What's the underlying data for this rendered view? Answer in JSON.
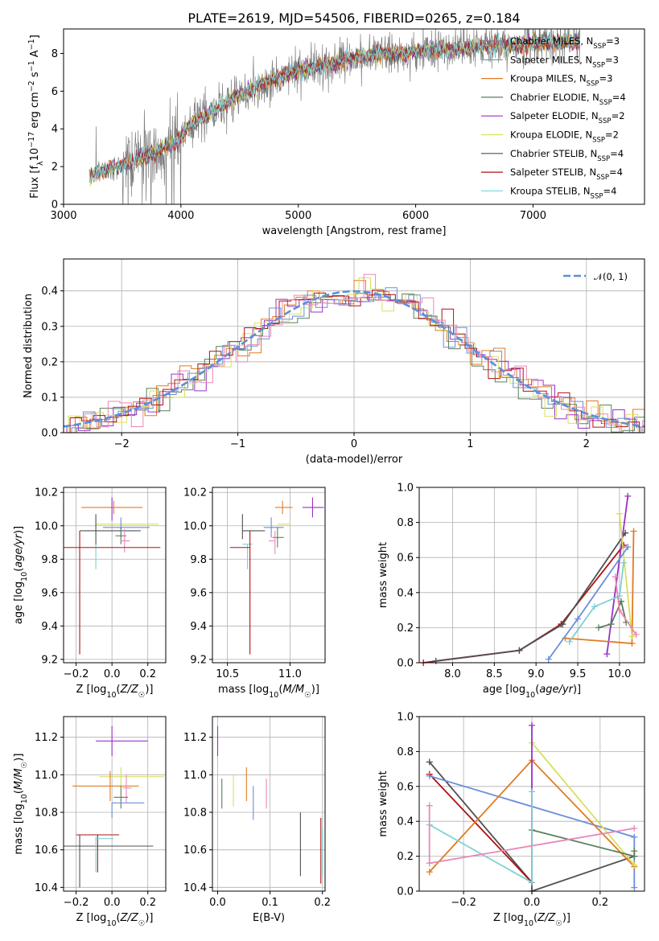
{
  "title": "PLATE=2619, MJD=54506, FIBERID=0265, z=0.184",
  "colors": {
    "chabrier_miles": "#808080",
    "salpeter_miles": "#5f9ea0",
    "kroupa_miles": "#e07b20",
    "chabrier_elodie": "#5a7f5a",
    "salpeter_elodie": "#9b30c8",
    "kroupa_elodie": "#d8e060",
    "chabrier_stelib": "#505050",
    "salpeter_stelib": "#b01010",
    "kroupa_stelib": "#80d8e0",
    "blue": "#6a8ed8",
    "pink": "#e888b8",
    "teal": "#80d0d0",
    "data_gray": "#808080",
    "normal_curve": "#5a8fd8",
    "grid": "#b0b0b0"
  },
  "chart_data": [
    {
      "id": "spectrum",
      "type": "line",
      "xlabel": "wavelength [Angstrom, rest frame]",
      "ylabel": "Flux [fλ10⁻¹⁷ erg cm⁻² s⁻¹ A⁻¹]",
      "xlim": [
        3000,
        7950
      ],
      "ylim": [
        0,
        9.3
      ],
      "xticks": [
        3000,
        4000,
        5000,
        6000,
        7000
      ],
      "yticks": [
        0,
        2,
        4,
        6,
        8
      ],
      "grid": false,
      "legend_position": "top-right",
      "legend": [
        {
          "name": "Chabrier MILES, N",
          "sub": "SSP",
          "suffix": "=3",
          "color": "chabrier_miles"
        },
        {
          "name": "Salpeter MILES, N",
          "sub": "SSP",
          "suffix": "=3",
          "color": "salpeter_miles"
        },
        {
          "name": "Kroupa MILES, N",
          "sub": "SSP",
          "suffix": "=3",
          "color": "kroupa_miles"
        },
        {
          "name": "Chabrier ELODIE, N",
          "sub": "SSP",
          "suffix": "=4",
          "color": "chabrier_elodie"
        },
        {
          "name": "Salpeter ELODIE, N",
          "sub": "SSP",
          "suffix": "=2",
          "color": "salpeter_elodie"
        },
        {
          "name": "Kroupa ELODIE, N",
          "sub": "SSP",
          "suffix": "=2",
          "color": "kroupa_elodie"
        },
        {
          "name": "Chabrier STELIB, N",
          "sub": "SSP",
          "suffix": "=4",
          "color": "chabrier_stelib"
        },
        {
          "name": "Salpeter STELIB, N",
          "sub": "SSP",
          "suffix": "=4",
          "color": "salpeter_stelib"
        },
        {
          "name": "Kroupa STELIB, N",
          "sub": "SSP",
          "suffix": "=4",
          "color": "kroupa_stelib"
        }
      ],
      "continuum_x": [
        3220,
        3400,
        3600,
        3800,
        3950,
        4100,
        4300,
        4500,
        4700,
        4900,
        5100,
        5300,
        5500,
        5700,
        5900,
        6100,
        6300,
        6500,
        6700,
        6900,
        7100,
        7300,
        7400
      ],
      "continuum_y": [
        1.5,
        1.9,
        2.3,
        2.8,
        3.3,
        4.3,
        5.0,
        5.8,
        6.4,
        6.9,
        7.2,
        7.5,
        7.8,
        8.0,
        8.0,
        8.2,
        8.2,
        8.3,
        8.4,
        8.5,
        8.6,
        8.6,
        8.6
      ]
    },
    {
      "id": "residuals",
      "type": "histogram",
      "xlabel": "(data-model)/error",
      "ylabel": "Normed distribution",
      "xlim": [
        -2.5,
        2.5
      ],
      "ylim": [
        0,
        0.49
      ],
      "xticks": [
        -2,
        -1,
        0,
        1,
        2
      ],
      "yticks": [
        0.0,
        0.1,
        0.2,
        0.3,
        0.4
      ],
      "grid": true,
      "legend_position": "top-right",
      "legend": [
        {
          "name": "𝒩(0, 1)",
          "color": "normal_curve",
          "dashed": true
        }
      ],
      "bin_width": 0.1
    },
    {
      "id": "age_vs_Z",
      "type": "errorbar",
      "xlabel": "Z [log10(Z/Z☉)]",
      "ylabel": "age  [log10(age/yr)]",
      "xlim": [
        -0.27,
        0.3
      ],
      "ylim": [
        9.18,
        10.23
      ],
      "xticks": [
        -0.2,
        0.0,
        0.2
      ],
      "yticks": [
        9.2,
        9.4,
        9.6,
        9.8,
        10.0,
        10.2
      ],
      "grid": true,
      "points": [
        {
          "x": 0.01,
          "y": 10.11,
          "xerr": [
            0.18,
            0.16
          ],
          "yerr": [
            0.04,
            0.04
          ],
          "color": "kroupa_miles"
        },
        {
          "x": 0.0,
          "y": 10.11,
          "xerr": [
            0.0,
            0.0
          ],
          "yerr": [
            0.08,
            0.06
          ],
          "color": "salpeter_elodie"
        },
        {
          "x": 0.05,
          "y": 10.01,
          "xerr": [
            0.14,
            0.21
          ],
          "yerr": [
            0.0,
            0.0
          ],
          "color": "kroupa_elodie"
        },
        {
          "x": -0.09,
          "y": 9.97,
          "xerr": [
            0.09,
            0.25
          ],
          "yerr": [
            0.09,
            0.1
          ],
          "color": "chabrier_stelib"
        },
        {
          "x": 0.05,
          "y": 9.99,
          "xerr": [
            0.1,
            0.16
          ],
          "yerr": [
            0.06,
            0.06
          ],
          "color": "blue"
        },
        {
          "x": 0.05,
          "y": 9.94,
          "xerr": [
            0.03,
            0.03
          ],
          "yerr": [
            0.05,
            0.05
          ],
          "color": "chabrier_elodie"
        },
        {
          "x": 0.07,
          "y": 9.91,
          "xerr": [
            0.02,
            0.03
          ],
          "yerr": [
            0.07,
            0.07
          ],
          "color": "pink"
        },
        {
          "x": -0.09,
          "y": 9.89,
          "xerr": [
            0.0,
            0.0
          ],
          "yerr": [
            0.15,
            0.0
          ],
          "color": "teal"
        },
        {
          "x": -0.18,
          "y": 9.87,
          "xerr": [
            0.09,
            0.45
          ],
          "yerr": [
            0.64,
            0.1
          ],
          "color": "salpeter_stelib"
        }
      ]
    },
    {
      "id": "age_vs_mass",
      "type": "errorbar",
      "xlabel": "mass [log10(M/M☉)]",
      "ylabel": "",
      "xlim": [
        10.38,
        11.28
      ],
      "ylim": [
        9.18,
        10.23
      ],
      "xticks": [
        10.5,
        11.0
      ],
      "yticks": [
        9.2,
        9.4,
        9.6,
        9.8,
        10.0,
        10.2
      ],
      "grid": true,
      "points": [
        {
          "x": 11.18,
          "y": 10.11,
          "xerr": [
            0.08,
            0.09
          ],
          "yerr": [
            0.06,
            0.06
          ],
          "color": "salpeter_elodie"
        },
        {
          "x": 10.94,
          "y": 10.11,
          "xerr": [
            0.06,
            0.08
          ],
          "yerr": [
            0.04,
            0.04
          ],
          "color": "kroupa_miles"
        },
        {
          "x": 10.98,
          "y": 10.01,
          "xerr": [
            0.08,
            0.02
          ],
          "yerr": [
            0.0,
            0.0
          ],
          "color": "kroupa_elodie"
        },
        {
          "x": 10.62,
          "y": 9.97,
          "xerr": [
            0.0,
            0.18
          ],
          "yerr": [
            0.05,
            0.1
          ],
          "color": "chabrier_stelib"
        },
        {
          "x": 10.85,
          "y": 9.99,
          "xerr": [
            0.06,
            0.1
          ],
          "yerr": [
            0.06,
            0.06
          ],
          "color": "blue"
        },
        {
          "x": 10.9,
          "y": 9.93,
          "xerr": [
            0.04,
            0.05
          ],
          "yerr": [
            0.06,
            0.06
          ],
          "color": "chabrier_elodie"
        },
        {
          "x": 10.88,
          "y": 9.91,
          "xerr": [
            0.05,
            0.0
          ],
          "yerr": [
            0.08,
            0.06
          ],
          "color": "pink"
        },
        {
          "x": 10.66,
          "y": 9.89,
          "xerr": [
            0.04,
            0.04
          ],
          "yerr": [
            0.15,
            0.0
          ],
          "color": "teal"
        },
        {
          "x": 10.68,
          "y": 9.87,
          "xerr": [
            0.16,
            0.0
          ],
          "yerr": [
            0.64,
            0.1
          ],
          "color": "salpeter_stelib"
        }
      ]
    },
    {
      "id": "weight_vs_age",
      "type": "line",
      "xlabel": "age  [log10(age/yr)]",
      "ylabel": "mass weight",
      "xlim": [
        7.6,
        10.3
      ],
      "ylim": [
        0,
        1.0
      ],
      "xticks": [
        8.0,
        8.5,
        9.0,
        9.5,
        10.0
      ],
      "yticks": [
        0.0,
        0.2,
        0.4,
        0.6,
        0.8,
        1.0
      ],
      "grid": true,
      "series": [
        {
          "color": "salpeter_stelib",
          "x": [
            7.65,
            8.8,
            9.3,
            10.05
          ],
          "y": [
            0.0,
            0.07,
            0.22,
            0.67
          ]
        },
        {
          "color": "chabrier_stelib",
          "x": [
            7.8,
            8.8,
            9.32,
            10.07
          ],
          "y": [
            0.01,
            0.07,
            0.22,
            0.74
          ]
        },
        {
          "color": "salpeter_elodie",
          "x": [
            9.85,
            10.1
          ],
          "y": [
            0.05,
            0.95
          ]
        },
        {
          "color": "kroupa_miles",
          "x": [
            9.35,
            10.15,
            10.17
          ],
          "y": [
            0.14,
            0.11,
            0.75
          ]
        },
        {
          "color": "kroupa_elodie",
          "x": [
            10.0,
            10.15
          ],
          "y": [
            0.85,
            0.15
          ]
        },
        {
          "color": "blue",
          "x": [
            9.15,
            9.5,
            10.1
          ],
          "y": [
            0.02,
            0.25,
            0.66
          ]
        },
        {
          "color": "chabrier_elodie",
          "x": [
            9.75,
            9.9,
            10.02,
            10.08
          ],
          "y": [
            0.2,
            0.22,
            0.35,
            0.23
          ]
        },
        {
          "color": "teal",
          "x": [
            9.4,
            9.7,
            10.0,
            10.05
          ],
          "y": [
            0.12,
            0.32,
            0.38,
            0.57
          ]
        },
        {
          "color": "pink",
          "x": [
            9.95,
            10.0,
            10.2
          ],
          "y": [
            0.49,
            0.3,
            0.16
          ]
        }
      ]
    },
    {
      "id": "mass_vs_Z",
      "type": "errorbar",
      "xlabel": "Z [log10(Z/Z☉)]",
      "ylabel": "mass [log10(M/M☉)]",
      "xlim": [
        -0.27,
        0.3
      ],
      "ylim": [
        10.38,
        11.31
      ],
      "xticks": [
        -0.2,
        0.0,
        0.2
      ],
      "yticks": [
        10.4,
        10.6,
        10.8,
        11.0,
        11.2
      ],
      "grid": true,
      "points": [
        {
          "x": 0.0,
          "y": 11.18,
          "xerr": [
            0.09,
            0.2
          ],
          "yerr": [
            0.08,
            0.08
          ],
          "color": "salpeter_elodie"
        },
        {
          "x": 0.05,
          "y": 10.99,
          "xerr": [
            0.12,
            0.24
          ],
          "yerr": [
            0.05,
            0.05
          ],
          "color": "kroupa_elodie"
        },
        {
          "x": -0.01,
          "y": 10.94,
          "xerr": [
            0.21,
            0.16
          ],
          "yerr": [
            0.08,
            0.08
          ],
          "color": "kroupa_miles"
        },
        {
          "x": 0.08,
          "y": 10.93,
          "xerr": [
            0.02,
            0.03
          ],
          "yerr": [
            0.08,
            0.07
          ],
          "color": "pink"
        },
        {
          "x": 0.05,
          "y": 10.88,
          "xerr": [
            0.04,
            0.04
          ],
          "yerr": [
            0.06,
            0.06
          ],
          "color": "chabrier_elodie"
        },
        {
          "x": 0.0,
          "y": 10.85,
          "xerr": [
            0.0,
            0.18
          ],
          "yerr": [
            0.08,
            0.0
          ],
          "color": "blue"
        },
        {
          "x": -0.08,
          "y": 10.68,
          "xerr": [
            0.12,
            0.12
          ],
          "yerr": [
            0.2,
            0.0
          ],
          "color": "salpeter_stelib"
        },
        {
          "x": -0.18,
          "y": 10.62,
          "xerr": [
            0.09,
            0.41
          ],
          "yerr": [
            0.22,
            0.06
          ],
          "color": "chabrier_stelib"
        },
        {
          "x": -0.09,
          "y": 10.66,
          "xerr": [
            0.0,
            0.1
          ],
          "yerr": [
            0.18,
            0.01
          ],
          "color": "teal"
        }
      ]
    },
    {
      "id": "mass_vs_ebv",
      "type": "errorbar",
      "xlabel": "E(B-V)",
      "ylabel": "",
      "xlim": [
        -0.01,
        0.205
      ],
      "ylim": [
        10.38,
        11.31
      ],
      "xticks": [
        0.0,
        0.1,
        0.2
      ],
      "yticks": [
        10.4,
        10.6,
        10.8,
        11.0,
        11.2
      ],
      "grid": true,
      "points": [
        {
          "x": 0.0,
          "y": 11.18,
          "xerr": [
            0,
            0
          ],
          "yerr": [
            0.08,
            0.08
          ],
          "color": "salpeter_elodie"
        },
        {
          "x": 0.008,
          "y": 10.9,
          "xerr": [
            0,
            0
          ],
          "yerr": [
            0.08,
            0.08
          ],
          "color": "chabrier_elodie"
        },
        {
          "x": 0.03,
          "y": 10.93,
          "xerr": [
            0,
            0
          ],
          "yerr": [
            0.1,
            0.07
          ],
          "color": "kroupa_elodie"
        },
        {
          "x": 0.055,
          "y": 10.94,
          "xerr": [
            0,
            0
          ],
          "yerr": [
            0.08,
            0.1
          ],
          "color": "kroupa_miles"
        },
        {
          "x": 0.068,
          "y": 10.86,
          "xerr": [
            0,
            0
          ],
          "yerr": [
            0.1,
            0.08
          ],
          "color": "blue"
        },
        {
          "x": 0.093,
          "y": 10.91,
          "xerr": [
            0,
            0
          ],
          "yerr": [
            0.09,
            0.07
          ],
          "color": "pink"
        },
        {
          "x": 0.158,
          "y": 10.62,
          "xerr": [
            0,
            0
          ],
          "yerr": [
            0.16,
            0.18
          ],
          "color": "chabrier_stelib"
        },
        {
          "x": 0.197,
          "y": 10.6,
          "xerr": [
            0,
            0
          ],
          "yerr": [
            0.18,
            0.17
          ],
          "color": "salpeter_stelib"
        },
        {
          "x": 0.2,
          "y": 10.58,
          "xerr": [
            0,
            0
          ],
          "yerr": [
            0.12,
            0.14
          ],
          "color": "teal"
        }
      ]
    },
    {
      "id": "weight_vs_Z",
      "type": "line",
      "xlabel": "Z [log10(Z/Z☉)]",
      "ylabel": "mass weight",
      "xlim": [
        -0.33,
        0.33
      ],
      "ylim": [
        0,
        1.0
      ],
      "xticks": [
        -0.2,
        0.0,
        0.2
      ],
      "yticks": [
        0.0,
        0.2,
        0.4,
        0.6,
        0.8,
        1.0
      ],
      "grid": true,
      "series": [
        {
          "color": "chabrier_stelib",
          "x": [
            -0.3,
            0.0,
            0.0,
            0.3
          ],
          "y": [
            0.74,
            0.05,
            0.0,
            0.2
          ]
        },
        {
          "color": "salpeter_stelib",
          "x": [
            -0.3,
            0.0
          ],
          "y": [
            0.67,
            0.05
          ]
        },
        {
          "color": "blue",
          "x": [
            -0.3,
            0.3,
            0.3
          ],
          "y": [
            0.66,
            0.31,
            0.02
          ]
        },
        {
          "color": "kroupa_miles",
          "x": [
            -0.3,
            0.0,
            0.3
          ],
          "y": [
            0.11,
            0.75,
            0.14
          ]
        },
        {
          "color": "kroupa_elodie",
          "x": [
            0.0,
            0.3
          ],
          "y": [
            0.85,
            0.15
          ]
        },
        {
          "color": "salpeter_elodie",
          "x": [
            0.0,
            0.0
          ],
          "y": [
            0.05,
            0.95
          ]
        },
        {
          "color": "chabrier_elodie",
          "x": [
            0.0,
            0.3,
            0.3
          ],
          "y": [
            0.35,
            0.2,
            0.23
          ]
        },
        {
          "color": "teal",
          "x": [
            -0.3,
            0.0,
            0.0
          ],
          "y": [
            0.38,
            0.05,
            0.57
          ]
        },
        {
          "color": "pink",
          "x": [
            -0.3,
            -0.3,
            0.3
          ],
          "y": [
            0.49,
            0.16,
            0.36
          ]
        }
      ]
    }
  ]
}
